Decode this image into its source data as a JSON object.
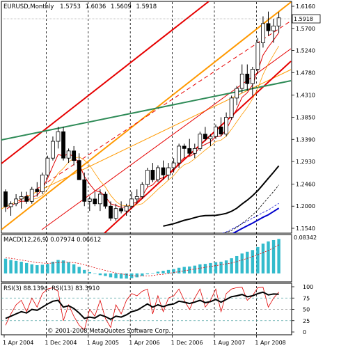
{
  "header": {
    "symbol": "EURUSD,Monthly",
    "open": "1.5753",
    "high": "1.6036",
    "low": "1.5609",
    "close": "1.5918"
  },
  "price_axis": {
    "ticks": [
      "1.6160",
      "1.5700",
      "1.5240",
      "1.4780",
      "1.4310",
      "1.3850",
      "1.3390",
      "1.2930",
      "1.2460",
      "1.2000",
      "1.1540"
    ],
    "current_price": "1.5918"
  },
  "time_axis": {
    "ticks": [
      "1 Apr 2004",
      "1 Dec 2004",
      "1 Aug 2005",
      "1 Apr 2006",
      "1 Dec 2006",
      "1 Aug 2007",
      "1 Apr 2008"
    ]
  },
  "macd": {
    "label": "MACD(12,26,9) 0.07974 0.06612",
    "ticks": [
      "0.08342"
    ]
  },
  "rsi": {
    "label": "RSI(3) 88.1394, RSI(13) 83.3910",
    "ticks": [
      "100",
      "75",
      "50",
      "25",
      "0"
    ]
  },
  "copyright": "© 2001-2008 MetaQuotes Software Corp.",
  "colors": {
    "bull_candle": "#ffffff",
    "bear_candle": "#000000",
    "channel_red": "#e60000",
    "channel_orange": "#ff9900",
    "trend_green": "#2e8b57",
    "ma_black": "#000000",
    "ma_blue": "#0000cc",
    "macd_hist": "#33bbcc",
    "macd_signal": "#e00000",
    "rsi_fast": "#e00000",
    "rsi_slow": "#000000"
  },
  "chart_data": {
    "type": "candlestick",
    "title": "EURUSD,Monthly",
    "candles": [
      {
        "o": 1.23,
        "h": 1.235,
        "l": 1.188,
        "c": 1.199
      },
      {
        "o": 1.199,
        "h": 1.21,
        "l": 1.18,
        "c": 1.205
      },
      {
        "o": 1.205,
        "h": 1.225,
        "l": 1.2,
        "c": 1.215
      },
      {
        "o": 1.215,
        "h": 1.23,
        "l": 1.195,
        "c": 1.22
      },
      {
        "o": 1.22,
        "h": 1.23,
        "l": 1.205,
        "c": 1.21
      },
      {
        "o": 1.21,
        "h": 1.24,
        "l": 1.205,
        "c": 1.235
      },
      {
        "o": 1.235,
        "h": 1.25,
        "l": 1.22,
        "c": 1.23
      },
      {
        "o": 1.23,
        "h": 1.27,
        "l": 1.225,
        "c": 1.265
      },
      {
        "o": 1.265,
        "h": 1.305,
        "l": 1.26,
        "c": 1.3
      },
      {
        "o": 1.3,
        "h": 1.345,
        "l": 1.295,
        "c": 1.335
      },
      {
        "o": 1.335,
        "h": 1.365,
        "l": 1.32,
        "c": 1.355
      },
      {
        "o": 1.355,
        "h": 1.365,
        "l": 1.295,
        "c": 1.3
      },
      {
        "o": 1.3,
        "h": 1.32,
        "l": 1.29,
        "c": 1.315
      },
      {
        "o": 1.315,
        "h": 1.325,
        "l": 1.285,
        "c": 1.295
      },
      {
        "o": 1.295,
        "h": 1.31,
        "l": 1.255,
        "c": 1.255
      },
      {
        "o": 1.255,
        "h": 1.27,
        "l": 1.2,
        "c": 1.21
      },
      {
        "o": 1.21,
        "h": 1.22,
        "l": 1.19,
        "c": 1.215
      },
      {
        "o": 1.215,
        "h": 1.23,
        "l": 1.2,
        "c": 1.205
      },
      {
        "o": 1.205,
        "h": 1.235,
        "l": 1.19,
        "c": 1.225
      },
      {
        "o": 1.225,
        "h": 1.23,
        "l": 1.195,
        "c": 1.2
      },
      {
        "o": 1.2,
        "h": 1.21,
        "l": 1.17,
        "c": 1.175
      },
      {
        "o": 1.175,
        "h": 1.205,
        "l": 1.17,
        "c": 1.195
      },
      {
        "o": 1.195,
        "h": 1.21,
        "l": 1.185,
        "c": 1.19
      },
      {
        "o": 1.19,
        "h": 1.205,
        "l": 1.18,
        "c": 1.2
      },
      {
        "o": 1.2,
        "h": 1.23,
        "l": 1.195,
        "c": 1.215
      },
      {
        "o": 1.215,
        "h": 1.235,
        "l": 1.205,
        "c": 1.22
      },
      {
        "o": 1.22,
        "h": 1.25,
        "l": 1.215,
        "c": 1.245
      },
      {
        "o": 1.245,
        "h": 1.28,
        "l": 1.24,
        "c": 1.275
      },
      {
        "o": 1.275,
        "h": 1.29,
        "l": 1.25,
        "c": 1.255
      },
      {
        "o": 1.255,
        "h": 1.285,
        "l": 1.25,
        "c": 1.28
      },
      {
        "o": 1.28,
        "h": 1.295,
        "l": 1.255,
        "c": 1.265
      },
      {
        "o": 1.265,
        "h": 1.29,
        "l": 1.255,
        "c": 1.28
      },
      {
        "o": 1.28,
        "h": 1.3,
        "l": 1.27,
        "c": 1.29
      },
      {
        "o": 1.29,
        "h": 1.33,
        "l": 1.28,
        "c": 1.325
      },
      {
        "o": 1.325,
        "h": 1.33,
        "l": 1.3,
        "c": 1.32
      },
      {
        "o": 1.32,
        "h": 1.34,
        "l": 1.305,
        "c": 1.31
      },
      {
        "o": 1.31,
        "h": 1.33,
        "l": 1.3,
        "c": 1.32
      },
      {
        "o": 1.32,
        "h": 1.355,
        "l": 1.315,
        "c": 1.35
      },
      {
        "o": 1.35,
        "h": 1.365,
        "l": 1.335,
        "c": 1.34
      },
      {
        "o": 1.34,
        "h": 1.35,
        "l": 1.325,
        "c": 1.345
      },
      {
        "o": 1.345,
        "h": 1.37,
        "l": 1.34,
        "c": 1.365
      },
      {
        "o": 1.365,
        "h": 1.385,
        "l": 1.345,
        "c": 1.35
      },
      {
        "o": 1.35,
        "h": 1.395,
        "l": 1.345,
        "c": 1.385
      },
      {
        "o": 1.385,
        "h": 1.43,
        "l": 1.38,
        "c": 1.425
      },
      {
        "o": 1.425,
        "h": 1.45,
        "l": 1.41,
        "c": 1.445
      },
      {
        "o": 1.445,
        "h": 1.495,
        "l": 1.435,
        "c": 1.475
      },
      {
        "o": 1.475,
        "h": 1.495,
        "l": 1.44,
        "c": 1.455
      },
      {
        "o": 1.455,
        "h": 1.49,
        "l": 1.43,
        "c": 1.485
      },
      {
        "o": 1.485,
        "h": 1.55,
        "l": 1.475,
        "c": 1.54
      },
      {
        "o": 1.54,
        "h": 1.595,
        "l": 1.53,
        "c": 1.58
      },
      {
        "o": 1.58,
        "h": 1.605,
        "l": 1.555,
        "c": 1.565
      },
      {
        "o": 1.565,
        "h": 1.59,
        "l": 1.54,
        "c": 1.575
      },
      {
        "o": 1.575,
        "h": 1.6036,
        "l": 1.5609,
        "c": 1.5918
      }
    ],
    "macd_hist": [
      0.034,
      0.031,
      0.029,
      0.027,
      0.024,
      0.021,
      0.019,
      0.02,
      0.022,
      0.027,
      0.031,
      0.03,
      0.026,
      0.021,
      0.015,
      0.008,
      0.003,
      -0.001,
      -0.004,
      -0.006,
      -0.009,
      -0.011,
      -0.012,
      -0.012,
      -0.011,
      -0.009,
      -0.006,
      -0.002,
      0.001,
      0.004,
      0.006,
      0.008,
      0.01,
      0.013,
      0.015,
      0.016,
      0.018,
      0.021,
      0.022,
      0.024,
      0.026,
      0.027,
      0.03,
      0.035,
      0.04,
      0.046,
      0.05,
      0.054,
      0.061,
      0.069,
      0.074,
      0.077,
      0.0797
    ],
    "macd_signal": [
      0.036,
      0.035,
      0.033,
      0.031,
      0.029,
      0.027,
      0.025,
      0.024,
      0.023,
      0.024,
      0.025,
      0.026,
      0.026,
      0.025,
      0.023,
      0.02,
      0.017,
      0.013,
      0.01,
      0.007,
      0.004,
      0.001,
      -0.001,
      -0.003,
      -0.005,
      -0.006,
      -0.006,
      -0.006,
      -0.005,
      -0.003,
      -0.002,
      0.0,
      0.002,
      0.004,
      0.006,
      0.008,
      0.01,
      0.012,
      0.014,
      0.016,
      0.018,
      0.02,
      0.022,
      0.024,
      0.027,
      0.031,
      0.035,
      0.039,
      0.043,
      0.048,
      0.053,
      0.059,
      0.0661
    ],
    "rsi13": [
      30,
      35,
      40,
      45,
      42,
      50,
      48,
      55,
      62,
      68,
      70,
      55,
      58,
      52,
      42,
      30,
      33,
      31,
      38,
      34,
      28,
      35,
      33,
      38,
      45,
      48,
      55,
      62,
      55,
      60,
      56,
      60,
      62,
      68,
      66,
      63,
      66,
      70,
      65,
      67,
      72,
      66,
      72,
      78,
      80,
      83,
      78,
      80,
      85,
      88,
      82,
      84,
      83.39
    ],
    "rsi3": [
      15,
      40,
      60,
      70,
      45,
      75,
      55,
      85,
      95,
      98,
      90,
      25,
      60,
      35,
      15,
      5,
      50,
      35,
      70,
      30,
      10,
      60,
      40,
      70,
      85,
      80,
      90,
      95,
      40,
      80,
      45,
      75,
      80,
      95,
      70,
      50,
      75,
      95,
      55,
      70,
      95,
      45,
      85,
      95,
      98,
      99,
      70,
      80,
      98,
      99,
      55,
      75,
      88.14
    ]
  }
}
